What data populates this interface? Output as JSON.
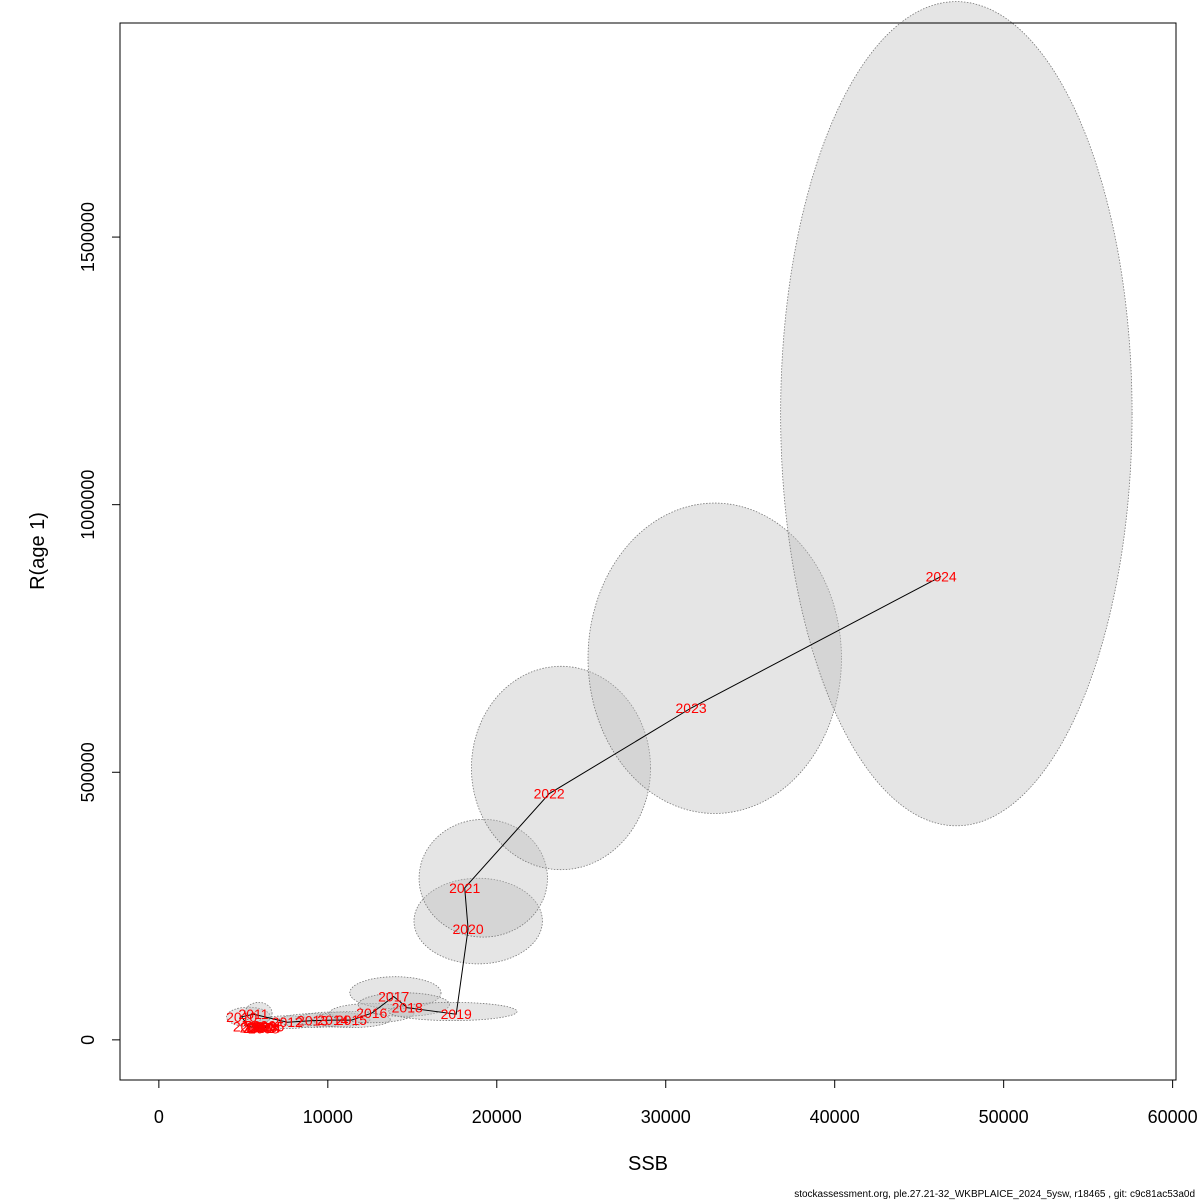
{
  "chart_data": {
    "type": "scatter",
    "title": "",
    "xlabel": "SSB",
    "ylabel": "R(age 1)",
    "xlim": [
      -2300,
      60200
    ],
    "ylim": [
      -75000,
      1900000
    ],
    "x_ticks": [
      0,
      10000,
      20000,
      30000,
      40000,
      50000,
      60000
    ],
    "y_ticks": [
      0,
      500000,
      1000000,
      1500000
    ],
    "x_tick_labels": [
      "0",
      "10000",
      "20000",
      "30000",
      "40000",
      "50000",
      "60000"
    ],
    "y_tick_labels": [
      "0",
      "500000",
      "1000000",
      "1500000"
    ],
    "grid": false,
    "legend": "none",
    "colors": {
      "label": "#ff0000",
      "line": "#000000",
      "ellipse_fill": "rgba(190,190,190,0.40)",
      "ellipse_stroke": "#777777"
    },
    "points": [
      {
        "year": "2002",
        "x": 5900,
        "y": 22000
      },
      {
        "year": "2003",
        "x": 6100,
        "y": 24000
      },
      {
        "year": "2004",
        "x": 6300,
        "y": 23000
      },
      {
        "year": "2005",
        "x": 6500,
        "y": 25000
      },
      {
        "year": "2006",
        "x": 6000,
        "y": 27000
      },
      {
        "year": "2007",
        "x": 5700,
        "y": 23000
      },
      {
        "year": "2008",
        "x": 6200,
        "y": 21000
      },
      {
        "year": "2009",
        "x": 5300,
        "y": 25000
      },
      {
        "year": "2010",
        "x": 4900,
        "y": 43000
      },
      {
        "year": "2011",
        "x": 5600,
        "y": 48000
      },
      {
        "year": "2012",
        "x": 7600,
        "y": 33000
      },
      {
        "year": "2013",
        "x": 9100,
        "y": 36000
      },
      {
        "year": "2014",
        "x": 10300,
        "y": 37000
      },
      {
        "year": "2015",
        "x": 11400,
        "y": 37000
      },
      {
        "year": "2016",
        "x": 12600,
        "y": 50000
      },
      {
        "year": "2017",
        "x": 13900,
        "y": 81000
      },
      {
        "year": "2018",
        "x": 14700,
        "y": 60000
      },
      {
        "year": "2019",
        "x": 17600,
        "y": 48000
      },
      {
        "year": "2020",
        "x": 18300,
        "y": 207000
      },
      {
        "year": "2021",
        "x": 18100,
        "y": 284000
      },
      {
        "year": "2022",
        "x": 23100,
        "y": 460000
      },
      {
        "year": "2023",
        "x": 31500,
        "y": 620000
      },
      {
        "year": "2024",
        "x": 46300,
        "y": 866000
      }
    ],
    "confidence_regions": [
      {
        "year": "2010",
        "cx": 5300,
        "cy": 43000,
        "rx": 1300,
        "ry": 18000
      },
      {
        "year": "2011",
        "cx": 5900,
        "cy": 50000,
        "rx": 800,
        "ry": 20000
      },
      {
        "year": "2012",
        "cx": 7600,
        "cy": 33000,
        "rx": 1700,
        "ry": 12000
      },
      {
        "year": "2013",
        "cx": 9100,
        "cy": 36000,
        "rx": 2000,
        "ry": 13000
      },
      {
        "year": "2014",
        "cx": 10300,
        "cy": 38000,
        "rx": 2200,
        "ry": 14000
      },
      {
        "year": "2015",
        "cx": 11400,
        "cy": 38000,
        "rx": 2300,
        "ry": 15000
      },
      {
        "year": "2016",
        "cx": 12600,
        "cy": 50000,
        "rx": 2500,
        "ry": 18000
      },
      {
        "year": "2017",
        "cx": 14000,
        "cy": 88000,
        "rx": 2700,
        "ry": 30000
      },
      {
        "year": "2018",
        "cx": 14500,
        "cy": 66000,
        "rx": 2700,
        "ry": 22000
      },
      {
        "year": "2019",
        "cx": 17400,
        "cy": 53000,
        "rx": 3800,
        "ry": 17000
      },
      {
        "year": "2020",
        "cx": 18900,
        "cy": 222000,
        "rx": 3800,
        "ry": 80000
      },
      {
        "year": "2021",
        "cx": 19200,
        "cy": 302000,
        "rx": 3800,
        "ry": 110000
      },
      {
        "year": "2022",
        "cx": 23800,
        "cy": 508000,
        "rx": 5300,
        "ry": 190000
      },
      {
        "year": "2023",
        "cx": 32900,
        "cy": 713000,
        "rx": 7500,
        "ry": 290000
      },
      {
        "year": "2024",
        "cx": 47200,
        "cy": 1170000,
        "rx": 10400,
        "ry": 770000
      }
    ]
  },
  "footer": "stockassessment.org, ple.27.21-32_WKBPLAICE_2024_5ysw, r18465 , git: c9c81ac53a0d"
}
